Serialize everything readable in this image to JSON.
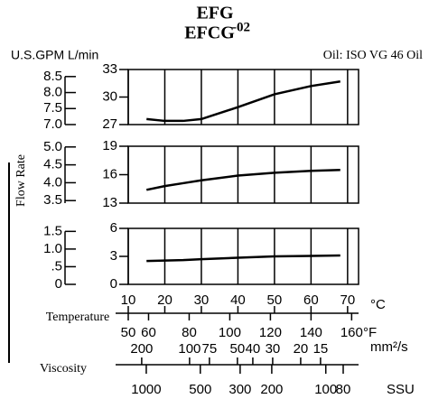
{
  "chart_data": {
    "type": "line",
    "title": "EFG",
    "title2": "EFCG",
    "title_sup": "-02",
    "y_units": "U.S.GPM L/min",
    "note": "Oil: ISO VG 46 Oil",
    "ylabel": "Flow Rate",
    "xlabel": "Temperature",
    "x_unit": "°C",
    "xlim": [
      10,
      73
    ],
    "xticks": [
      10,
      20,
      30,
      40,
      50,
      60,
      70
    ],
    "grid": true,
    "x": [
      15,
      20,
      25,
      30,
      40,
      50,
      60,
      68
    ],
    "panels": [
      {
        "ylim": [
          27,
          33
        ],
        "yticks": [
          27,
          30,
          33
        ],
        "gpm_ylim": [
          7.0,
          8.72
        ],
        "gpm_ticks": [
          {
            "value": 7.0,
            "label": "7.0"
          },
          7.5,
          {
            "value": 8.0,
            "label": "8.0"
          },
          8.5
        ],
        "series": [
          {
            "color": "#000000",
            "values": [
              27.6,
              27.4,
              27.4,
              27.6,
              28.9,
              30.3,
              31.2,
              31.7
            ]
          }
        ]
      },
      {
        "ylim": [
          13,
          19
        ],
        "yticks": [
          13,
          16,
          19
        ],
        "gpm_ylim": [
          3.43,
          5.02
        ],
        "gpm_ticks": [
          3.5,
          {
            "value": 4.0,
            "label": "4.0"
          },
          4.5,
          {
            "value": 5.0,
            "label": "5.0"
          }
        ],
        "series": [
          {
            "color": "#000000",
            "values": [
              14.4,
              14.8,
              15.1,
              15.4,
              15.9,
              16.2,
              16.4,
              16.5
            ]
          }
        ]
      },
      {
        "ylim": [
          0,
          6
        ],
        "yticks": [
          0,
          3,
          6
        ],
        "gpm_ylim": [
          0,
          1.585
        ],
        "gpm_ticks": [
          0,
          {
            "value": 0.5,
            "label": ".5"
          },
          {
            "value": 1.0,
            "label": "1.0"
          },
          1.5
        ],
        "series": [
          {
            "color": "#000000",
            "values": [
              2.5,
              2.55,
              2.6,
              2.7,
              2.85,
              3.0,
              3.05,
              3.1
            ]
          }
        ]
      }
    ],
    "fahrenheit": {
      "xlim": [
        50,
        163.4
      ],
      "xticks": [
        50,
        60,
        80,
        100,
        120,
        140,
        160
      ],
      "unit": "°F"
    },
    "viscosity_label": "Viscosity",
    "mm2s": {
      "log": true,
      "xlim": [
        243,
        8.65
      ],
      "xticks": [
        200,
        100,
        75,
        50,
        40,
        30,
        20,
        15
      ],
      "unit": "mm²/s"
    },
    "ssu": {
      "log": true,
      "xlim": [
        1260,
        65.7
      ],
      "xticks": [
        1000,
        500,
        300,
        200,
        100,
        80
      ],
      "unit": "SSU"
    }
  }
}
